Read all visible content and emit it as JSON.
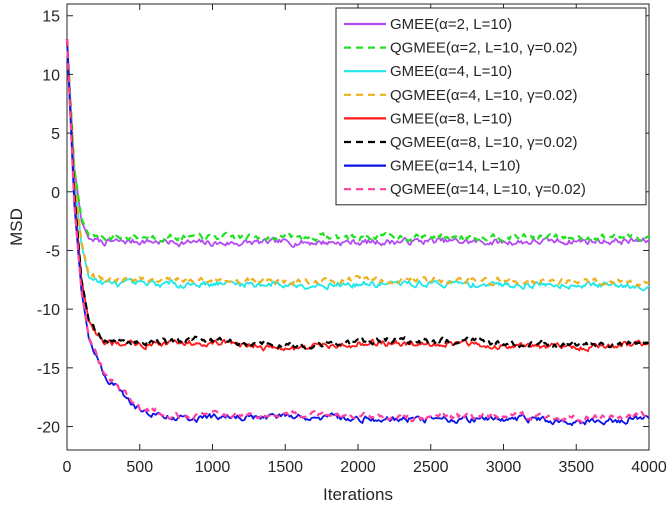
{
  "chart_data": {
    "type": "line",
    "title": "",
    "xlabel": "Iterations",
    "ylabel": "MSD",
    "xlim": [
      0,
      4000
    ],
    "ylim": [
      -22,
      16
    ],
    "xticks": [
      0,
      500,
      1000,
      1500,
      2000,
      2500,
      3000,
      3500,
      4000
    ],
    "yticks": [
      15,
      10,
      5,
      0,
      -5,
      -10,
      -15,
      -20
    ],
    "grid": false,
    "legend_position": "top-right",
    "series": [
      {
        "name": "GMEE(α=2, L=10)",
        "color": "#b44cf0",
        "dash": "solid",
        "start": 13,
        "steady": -4.3,
        "x": [
          0,
          50,
          100,
          150,
          250,
          500,
          1000,
          1500,
          2000,
          2500,
          3000,
          3500,
          4000
        ],
        "y": [
          13,
          2,
          -2.5,
          -4.0,
          -4.3,
          -4.2,
          -4.4,
          -4.3,
          -4.3,
          -4.2,
          -4.3,
          -4.2,
          -4.2
        ]
      },
      {
        "name": "QGMEE(α=2, L=10, γ=0.02)",
        "color": "#22e022",
        "dash": "dashed",
        "start": 13,
        "steady": -3.9,
        "x": [
          0,
          50,
          100,
          150,
          250,
          500,
          1000,
          1500,
          2000,
          2500,
          3000,
          3500,
          4000
        ],
        "y": [
          13,
          2,
          -2.3,
          -3.7,
          -3.9,
          -3.8,
          -3.9,
          -3.8,
          -3.9,
          -3.8,
          -3.8,
          -3.9,
          -3.8
        ]
      },
      {
        "name": "GMEE(α=4, L=10)",
        "color": "#1ee8e8",
        "dash": "solid",
        "start": 13,
        "steady": -7.9,
        "x": [
          0,
          50,
          100,
          150,
          250,
          500,
          1000,
          1500,
          2000,
          2500,
          3000,
          3500,
          4000
        ],
        "y": [
          13,
          1,
          -4.5,
          -7.3,
          -7.8,
          -7.9,
          -7.8,
          -7.9,
          -7.9,
          -7.8,
          -7.9,
          -7.9,
          -8.0
        ]
      },
      {
        "name": "QGMEE(α=4, L=10, γ=0.02)",
        "color": "#edb120",
        "dash": "dashed",
        "start": 13,
        "steady": -7.6,
        "x": [
          0,
          50,
          100,
          150,
          250,
          500,
          1000,
          1500,
          2000,
          2500,
          3000,
          3500,
          4000
        ],
        "y": [
          13,
          1,
          -4.3,
          -7.1,
          -7.5,
          -7.6,
          -7.5,
          -7.6,
          -7.6,
          -7.5,
          -7.6,
          -7.6,
          -7.7
        ]
      },
      {
        "name": "GMEE(α=8, L=10)",
        "color": "#ff1a1a",
        "dash": "solid",
        "start": 13,
        "steady": -13.0,
        "x": [
          0,
          50,
          100,
          150,
          250,
          500,
          1000,
          1500,
          2000,
          2500,
          3000,
          3500,
          4000
        ],
        "y": [
          13,
          0,
          -7.5,
          -11.0,
          -12.9,
          -13.0,
          -12.8,
          -13.4,
          -12.9,
          -12.9,
          -13.1,
          -13.3,
          -12.9
        ]
      },
      {
        "name": "QGMEE(α=8, L=10, γ=0.02)",
        "color": "#000000",
        "dash": "dashed",
        "start": 13,
        "steady": -12.8,
        "x": [
          0,
          50,
          100,
          150,
          250,
          500,
          1000,
          1500,
          2000,
          2500,
          3000,
          3500,
          4000
        ],
        "y": [
          13,
          0,
          -7.5,
          -11.0,
          -12.7,
          -12.8,
          -12.6,
          -13.2,
          -12.7,
          -12.7,
          -12.9,
          -13.1,
          -12.7
        ]
      },
      {
        "name": "GMEE(α=14, L=10)",
        "color": "#0a14e6",
        "dash": "solid",
        "start": 13,
        "steady": -19.3,
        "x": [
          0,
          50,
          100,
          150,
          250,
          500,
          800,
          1000,
          1500,
          2000,
          2500,
          3000,
          3500,
          4000
        ],
        "y": [
          13,
          -1,
          -8.5,
          -12.5,
          -15.5,
          -18.6,
          -19.4,
          -19.2,
          -19.2,
          -19.3,
          -19.4,
          -19.3,
          -19.6,
          -19.3
        ]
      },
      {
        "name": "QGMEE(α=14, L=10, γ=0.02)",
        "color": "#ff3ea0",
        "dash": "dashed",
        "start": 13,
        "steady": -19.1,
        "x": [
          0,
          50,
          100,
          150,
          250,
          500,
          800,
          1000,
          1500,
          2000,
          2500,
          3000,
          3500,
          4000
        ],
        "y": [
          13,
          -1,
          -8.5,
          -12.4,
          -15.3,
          -18.4,
          -19.2,
          -19.0,
          -19.0,
          -19.1,
          -19.2,
          -19.1,
          -19.4,
          -19.1
        ]
      }
    ]
  }
}
